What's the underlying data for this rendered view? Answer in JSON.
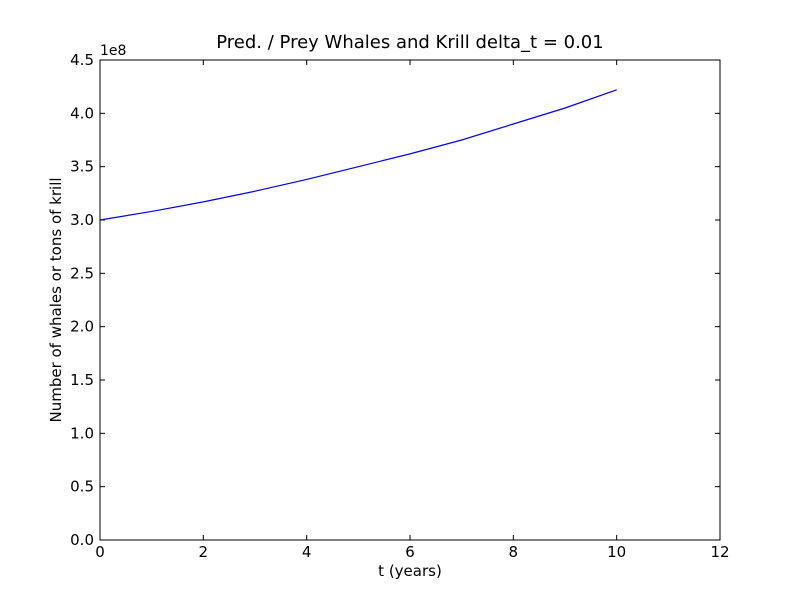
{
  "chart_data": {
    "type": "line",
    "title": "Pred. / Prey Whales and Krill delta_t = 0.01",
    "xlabel": "t (years)",
    "ylabel": "Number of whales or tons of krill",
    "y_offset_label": "1e8",
    "xlim": [
      0,
      12
    ],
    "ylim": [
      0,
      4.5
    ],
    "x_ticks": [
      0,
      2,
      4,
      6,
      8,
      10,
      12
    ],
    "x_tick_labels": [
      "0",
      "2",
      "4",
      "6",
      "8",
      "10",
      "12"
    ],
    "y_ticks": [
      0,
      0.5,
      1.0,
      1.5,
      2.0,
      2.5,
      3.0,
      3.5,
      4.0,
      4.5
    ],
    "y_tick_labels": [
      "0.0",
      "0.5",
      "1.0",
      "1.5",
      "2.0",
      "2.5",
      "3.0",
      "3.5",
      "4.0",
      "4.5"
    ],
    "grid": false,
    "series": [
      {
        "color": "#0000ff",
        "x": [
          0,
          1,
          2,
          3,
          4,
          5,
          6,
          7,
          8,
          9,
          10
        ],
        "y": [
          3.0,
          3.08,
          3.17,
          3.27,
          3.38,
          3.5,
          3.62,
          3.75,
          3.9,
          4.05,
          4.22
        ]
      }
    ]
  }
}
